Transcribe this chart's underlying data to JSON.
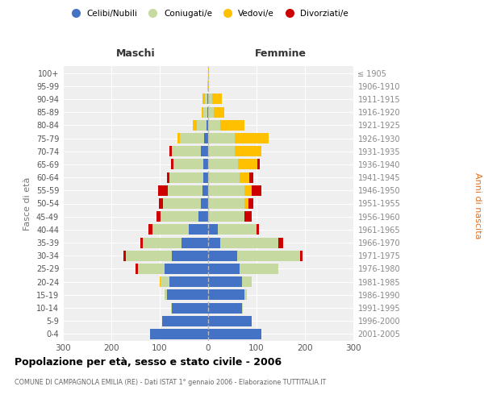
{
  "age_groups_bottom_to_top": [
    "0-4",
    "5-9",
    "10-14",
    "15-19",
    "20-24",
    "25-29",
    "30-34",
    "35-39",
    "40-44",
    "45-49",
    "50-54",
    "55-59",
    "60-64",
    "65-69",
    "70-74",
    "75-79",
    "80-84",
    "85-89",
    "90-94",
    "95-99",
    "100+"
  ],
  "birth_years_bottom_to_top": [
    "2001-2005",
    "1996-2000",
    "1991-1995",
    "1986-1990",
    "1981-1985",
    "1976-1980",
    "1971-1975",
    "1966-1970",
    "1961-1965",
    "1956-1960",
    "1951-1955",
    "1946-1950",
    "1941-1945",
    "1936-1940",
    "1931-1935",
    "1926-1930",
    "1921-1925",
    "1916-1920",
    "1911-1915",
    "1906-1910",
    "≤ 1905"
  ],
  "male_celibi": [
    120,
    95,
    75,
    85,
    80,
    90,
    75,
    55,
    40,
    20,
    15,
    12,
    10,
    10,
    15,
    8,
    4,
    2,
    2,
    0,
    0
  ],
  "male_coniugati": [
    0,
    0,
    2,
    5,
    18,
    55,
    95,
    80,
    75,
    78,
    78,
    72,
    70,
    62,
    60,
    50,
    20,
    8,
    5,
    1,
    0
  ],
  "male_vedovi": [
    0,
    0,
    0,
    0,
    2,
    0,
    0,
    0,
    0,
    0,
    0,
    0,
    0,
    0,
    0,
    5,
    8,
    3,
    4,
    0,
    0
  ],
  "male_divorziati": [
    0,
    0,
    0,
    0,
    0,
    5,
    5,
    5,
    8,
    8,
    8,
    20,
    5,
    5,
    5,
    0,
    0,
    0,
    0,
    0,
    0
  ],
  "female_nubili": [
    110,
    90,
    70,
    75,
    70,
    65,
    60,
    25,
    20,
    0,
    0,
    0,
    0,
    0,
    0,
    0,
    0,
    0,
    0,
    0,
    0
  ],
  "female_coniugate": [
    0,
    0,
    2,
    5,
    20,
    80,
    130,
    120,
    80,
    75,
    75,
    75,
    65,
    62,
    55,
    55,
    25,
    12,
    8,
    0,
    0
  ],
  "female_vedove": [
    0,
    0,
    0,
    0,
    0,
    0,
    0,
    0,
    0,
    0,
    8,
    15,
    20,
    40,
    55,
    70,
    50,
    22,
    20,
    2,
    1
  ],
  "female_divorziate": [
    0,
    0,
    0,
    0,
    0,
    0,
    5,
    10,
    5,
    15,
    10,
    20,
    8,
    5,
    0,
    0,
    0,
    0,
    0,
    0,
    0
  ],
  "colors": {
    "celibi": "#4472c4",
    "coniugati": "#c5d9a0",
    "vedovi": "#ffc000",
    "divorziati": "#cc0000"
  },
  "title": "Popolazione per età, sesso e stato civile - 2006",
  "subtitle": "COMUNE DI CAMPAGNOLA EMILIA (RE) - Dati ISTAT 1° gennaio 2006 - Elaborazione TUTTITALIA.IT",
  "ylabel_left": "Fasce di età",
  "ylabel_right": "Anni di nascita",
  "legend_labels": [
    "Celibi/Nubili",
    "Coniugati/e",
    "Vedovi/e",
    "Divorziati/e"
  ],
  "maschi_label": "Maschi",
  "femmine_label": "Femmine",
  "xtick_vals": [
    -300,
    -200,
    -100,
    0,
    100,
    200,
    300
  ],
  "xtick_labels": [
    "300",
    "200",
    "100",
    "0",
    "100",
    "200",
    "300"
  ]
}
